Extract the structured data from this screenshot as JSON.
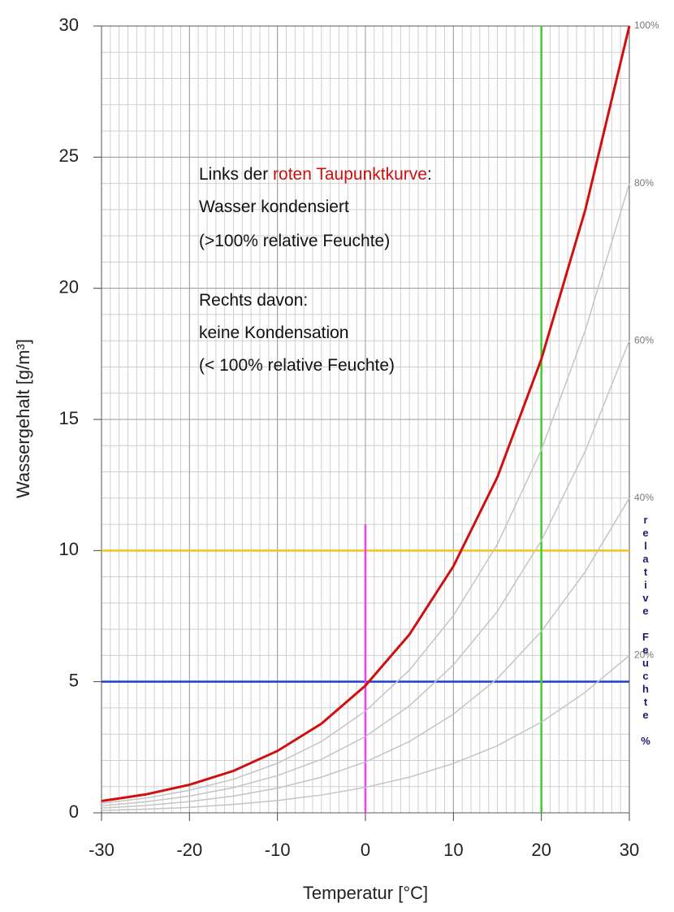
{
  "chart_data": {
    "type": "line",
    "xlabel": "Temperatur [°C]",
    "ylabel": "Wassergehalt [g/m³]",
    "x": [
      -30,
      -25,
      -20,
      -15,
      -10,
      -5,
      0,
      5,
      10,
      15,
      20,
      25,
      30
    ],
    "series": [
      {
        "name": "100%",
        "color": "#d01010",
        "values": [
          0.45,
          0.7,
          1.07,
          1.6,
          2.36,
          3.4,
          4.85,
          6.8,
          9.4,
          12.8,
          17.3,
          23.0,
          30.0
        ]
      },
      {
        "name": "80%",
        "color": "#c4c4c4",
        "values": [
          0.36,
          0.56,
          0.86,
          1.28,
          1.89,
          2.72,
          3.88,
          5.44,
          7.52,
          10.24,
          13.84,
          18.4,
          24.0
        ]
      },
      {
        "name": "60%",
        "color": "#c4c4c4",
        "values": [
          0.27,
          0.42,
          0.64,
          0.96,
          1.42,
          2.04,
          2.91,
          4.08,
          5.64,
          7.68,
          10.38,
          13.8,
          18.0
        ]
      },
      {
        "name": "40%",
        "color": "#c4c4c4",
        "values": [
          0.18,
          0.28,
          0.43,
          0.64,
          0.94,
          1.36,
          1.94,
          2.72,
          3.76,
          5.12,
          6.92,
          9.2,
          12.0
        ]
      },
      {
        "name": "20%",
        "color": "#c4c4c4",
        "values": [
          0.09,
          0.14,
          0.21,
          0.32,
          0.47,
          0.68,
          0.97,
          1.36,
          1.88,
          2.56,
          3.46,
          4.6,
          6.0
        ]
      }
    ],
    "xlim": [
      -30,
      30
    ],
    "ylim": [
      0,
      30
    ],
    "xticks": [
      -30,
      -20,
      -10,
      0,
      10,
      20,
      30
    ],
    "yticks": [
      0,
      5,
      10,
      15,
      20,
      25,
      30
    ],
    "grid": true,
    "x_minor_step": 1,
    "y_minor_step": 1,
    "reference_lines": [
      {
        "axis": "y",
        "value": 10,
        "color": "#f4c21a"
      },
      {
        "axis": "y",
        "value": 5,
        "color": "#1e3fd0"
      },
      {
        "axis": "x",
        "value": 20,
        "color": "#3fcc2f"
      },
      {
        "axis": "x",
        "value": 0,
        "color": "#f040f0",
        "extent": [
          0,
          11
        ]
      }
    ],
    "right_label": "relative Feuchte %",
    "annotations": [
      [
        {
          "text": "Links der ",
          "color": "#111"
        },
        {
          "text": "roten Taupunktkurve",
          "color": "#cc1010"
        },
        {
          "text": ":",
          "color": "#111"
        }
      ],
      [
        {
          "text": "Wasser kondensiert",
          "color": "#111"
        }
      ],
      [
        {
          "text": "(>100% relative Feuchte)",
          "color": "#111"
        }
      ],
      [
        {
          "text": "Rechts davon:",
          "color": "#111"
        }
      ],
      [
        {
          "text": "keine Kondensation",
          "color": "#111"
        }
      ],
      [
        {
          "text": "(< 100% relative Feuchte)",
          "color": "#111"
        }
      ]
    ]
  }
}
